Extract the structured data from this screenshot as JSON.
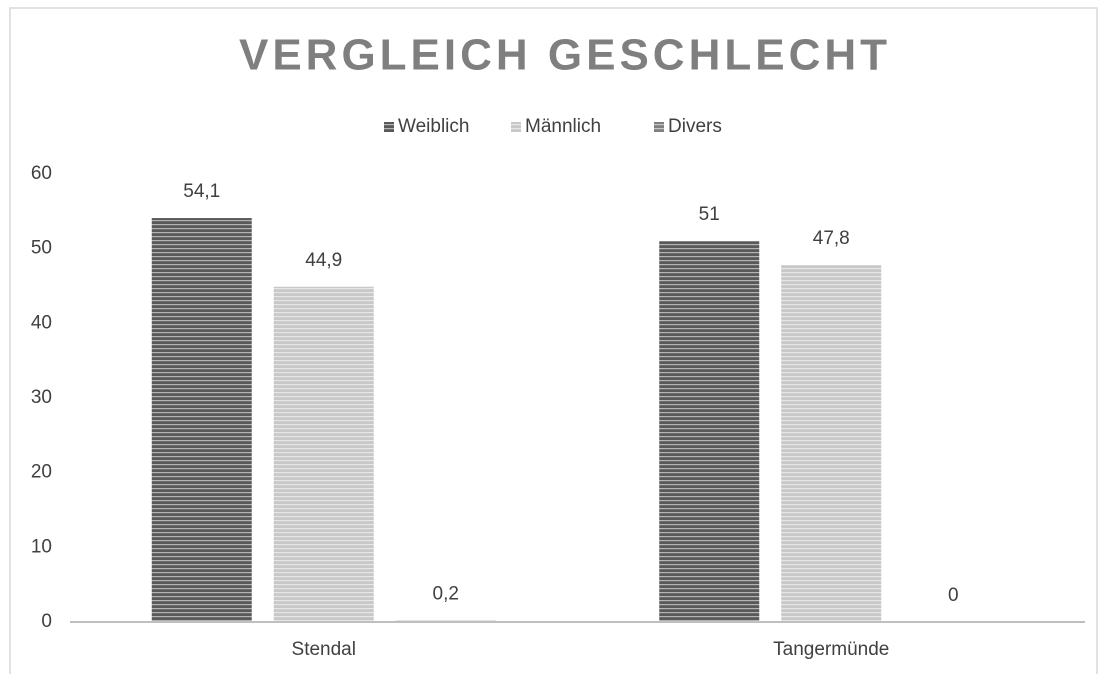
{
  "chart_data": {
    "type": "bar",
    "title": "VERGLEICH GESCHLECHT",
    "categories": [
      "Stendal",
      "Tangermünde"
    ],
    "series": [
      {
        "name": "Weiblich",
        "color": "#595959",
        "values": [
          54.1,
          51
        ],
        "value_labels": [
          "54,1",
          "51"
        ]
      },
      {
        "name": "Männlich",
        "color": "#c8c8c8",
        "values": [
          44.9,
          47.8
        ],
        "value_labels": [
          "44,9",
          "47,8"
        ]
      },
      {
        "name": "Divers",
        "color": "#7f7f7f",
        "values": [
          0.2,
          0
        ],
        "value_labels": [
          "0,2",
          "0"
        ]
      }
    ],
    "ylim": [
      0,
      60
    ],
    "yticks": [
      0,
      10,
      20,
      30,
      40,
      50,
      60
    ],
    "grid": false,
    "legend": "top"
  }
}
